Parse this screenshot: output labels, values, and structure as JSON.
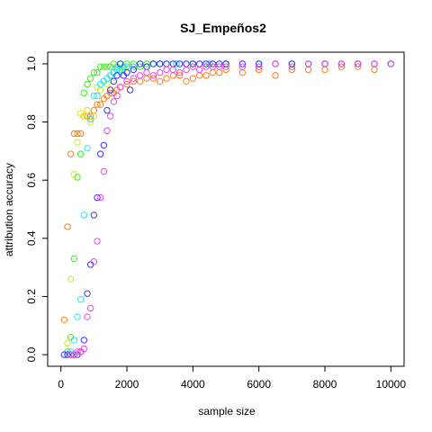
{
  "chart_data": {
    "type": "scatter",
    "title": "SJ_Empeños2",
    "xlabel": "sample size",
    "ylabel": "attribution accuracy",
    "xlim": [
      -400,
      10400
    ],
    "ylim": [
      -0.04,
      1.04
    ],
    "x_ticks": [
      0,
      2000,
      4000,
      6000,
      8000,
      10000
    ],
    "x_tick_labels": [
      "0",
      "2000",
      "4000",
      "6000",
      "8000",
      "10000"
    ],
    "y_ticks": [
      0.0,
      0.2,
      0.4,
      0.6,
      0.8,
      1.0
    ],
    "y_tick_labels": [
      "0.0",
      "0.2",
      "0.4",
      "0.6",
      "0.8",
      "1.0"
    ],
    "grid": false,
    "series": [
      {
        "color": "#ff7f1a",
        "x": [
          100,
          200,
          300,
          400,
          500,
          600,
          700,
          800,
          900,
          1000,
          1100,
          1200,
          1300,
          1400,
          1500,
          1600,
          1700,
          1800,
          2000,
          2200,
          2400,
          2600,
          2800,
          3000,
          3200,
          3400,
          3600,
          3800,
          4000,
          4200,
          4400,
          4600,
          4800,
          5000,
          5500,
          6000,
          6500,
          7000,
          7500,
          8000,
          8500,
          9000,
          9500,
          10000
        ],
        "y": [
          0.12,
          0.44,
          0.69,
          0.76,
          0.76,
          0.76,
          0.82,
          0.82,
          0.82,
          0.84,
          0.86,
          0.86,
          0.88,
          0.89,
          0.9,
          0.9,
          0.91,
          0.92,
          0.93,
          0.94,
          0.94,
          0.95,
          0.95,
          0.94,
          0.95,
          0.96,
          0.96,
          0.94,
          0.95,
          0.96,
          0.96,
          0.97,
          0.97,
          0.98,
          0.97,
          0.98,
          0.96,
          0.98,
          0.98,
          0.98,
          0.99,
          0.99,
          0.98,
          1.0
        ]
      },
      {
        "color": "#d4e619",
        "x": [
          200,
          300,
          400,
          500,
          600,
          700,
          800,
          900,
          1000,
          1100,
          1200,
          1300,
          1400,
          1500,
          1600,
          1700,
          1800,
          1900,
          2000,
          2200,
          2400,
          2600,
          2800,
          3000,
          3500,
          4000,
          4500,
          5000,
          6000,
          7000,
          8000,
          9000,
          10000
        ],
        "y": [
          0.04,
          0.26,
          0.62,
          0.73,
          0.83,
          0.82,
          0.84,
          0.8,
          0.82,
          0.92,
          0.91,
          0.94,
          0.93,
          0.96,
          0.97,
          0.98,
          0.97,
          0.98,
          0.99,
          0.99,
          0.99,
          1.0,
          1.0,
          1.0,
          1.0,
          1.0,
          1.0,
          1.0,
          1.0,
          1.0,
          1.0,
          1.0,
          1.0
        ]
      },
      {
        "color": "#3cf01e",
        "x": [
          200,
          300,
          400,
          500,
          600,
          700,
          800,
          900,
          1000,
          1100,
          1200,
          1300,
          1400,
          1500,
          1600,
          1700,
          1800,
          1900,
          2000,
          2200,
          2400,
          2600,
          2800,
          3000,
          3500,
          4000,
          4500,
          5000,
          6000,
          7000,
          8000,
          9000,
          10000
        ],
        "y": [
          0.01,
          0.06,
          0.33,
          0.61,
          0.69,
          0.9,
          0.93,
          0.95,
          0.97,
          0.97,
          0.99,
          0.99,
          0.99,
          0.99,
          1.0,
          0.99,
          1.0,
          0.99,
          1.0,
          1.0,
          0.99,
          1.0,
          1.0,
          1.0,
          1.0,
          1.0,
          1.0,
          1.0,
          1.0,
          1.0,
          1.0,
          1.0,
          1.0
        ]
      },
      {
        "color": "#1ee6ff",
        "x": [
          200,
          300,
          400,
          500,
          600,
          700,
          800,
          900,
          1000,
          1100,
          1200,
          1300,
          1400,
          1500,
          1600,
          1700,
          1800,
          1900,
          2000,
          2200,
          2400,
          2600,
          2800,
          3000,
          3500,
          4000,
          4500,
          5000,
          6000,
          7000,
          8000,
          9000,
          10000
        ],
        "y": [
          0.0,
          0.01,
          0.05,
          0.13,
          0.19,
          0.48,
          0.71,
          0.81,
          0.89,
          0.89,
          0.93,
          0.94,
          0.95,
          0.96,
          0.97,
          0.98,
          0.98,
          0.99,
          0.99,
          0.99,
          1.0,
          0.99,
          1.0,
          1.0,
          1.0,
          1.0,
          1.0,
          1.0,
          1.0,
          1.0,
          1.0,
          1.0,
          1.0
        ]
      },
      {
        "color": "#3333ff",
        "x": [
          100,
          200,
          300,
          400,
          500,
          600,
          700,
          800,
          900,
          1000,
          1100,
          1200,
          1300,
          1400,
          1500,
          1600,
          1700,
          1800,
          1900,
          2000,
          2100,
          2200,
          2400,
          2600,
          2800,
          3000,
          3200,
          3400,
          3600,
          3800,
          4000,
          4200,
          4400,
          4600,
          4800,
          5000,
          5500,
          6000,
          6500,
          7000,
          7500,
          8000,
          8500,
          9000,
          9500,
          10000
        ],
        "y": [
          0.0,
          0.0,
          0.0,
          0.0,
          0.0,
          0.01,
          0.05,
          0.21,
          0.31,
          0.48,
          0.54,
          0.69,
          0.72,
          0.84,
          0.91,
          0.94,
          0.96,
          1.0,
          0.96,
          0.97,
          0.91,
          0.98,
          1.0,
          0.99,
          1.0,
          1.0,
          1.0,
          1.0,
          1.0,
          1.0,
          1.0,
          1.0,
          1.0,
          1.0,
          1.0,
          1.0,
          1.0,
          1.0,
          1.0,
          1.0,
          1.0,
          1.0,
          1.0,
          1.0,
          1.0,
          1.0
        ]
      },
      {
        "color": "#ee44ee",
        "x": [
          300,
          400,
          500,
          600,
          700,
          800,
          900,
          1000,
          1100,
          1200,
          1300,
          1400,
          1500,
          1600,
          1700,
          1800,
          2000,
          2200,
          2400,
          2600,
          2800,
          3000,
          3200,
          3400,
          3600,
          3800,
          4000,
          4200,
          4400,
          4600,
          4800,
          5000,
          5500,
          6000,
          6500,
          7000,
          7500,
          8000,
          8500,
          9000,
          9500,
          10000
        ],
        "y": [
          0.0,
          0.0,
          0.01,
          0.01,
          0.02,
          0.13,
          0.16,
          0.32,
          0.39,
          0.54,
          0.63,
          0.77,
          0.82,
          0.87,
          0.89,
          0.92,
          0.94,
          0.95,
          0.96,
          0.97,
          0.96,
          0.97,
          0.98,
          0.98,
          0.97,
          0.98,
          0.99,
          0.98,
          0.99,
          0.99,
          0.99,
          0.99,
          0.99,
          0.99,
          1.0,
          0.99,
          1.0,
          1.0,
          1.0,
          1.0,
          1.0,
          1.0
        ]
      }
    ]
  }
}
